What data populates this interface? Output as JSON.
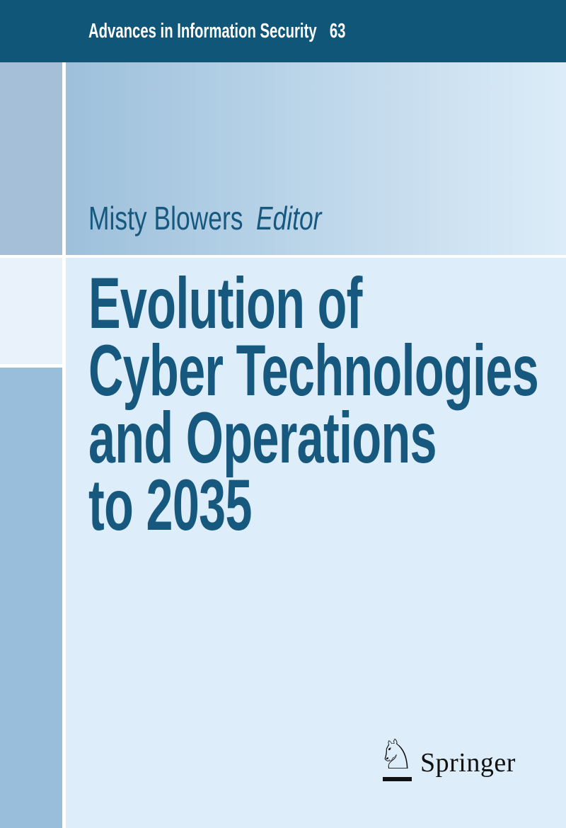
{
  "series": {
    "name": "Advances in Information Security",
    "volume": "63"
  },
  "editor": {
    "name": "Misty Blowers",
    "role": "Editor"
  },
  "title": {
    "lines": [
      "Evolution of",
      "Cyber Technologies",
      "and Operations",
      "to 2035"
    ]
  },
  "publisher": {
    "name": "Springer",
    "knight_icon_glyph": "♘"
  },
  "colors": {
    "header_bg": "#0f5679",
    "header_text": "#ffffff",
    "band_gradient_left": "#9dc0db",
    "band_gradient_right": "#dcecf8",
    "left_rail_top": "#a4bfd7",
    "left_rail_mid": "#e9f2fa",
    "left_rail_bottom": "#98bedb",
    "main_bg": "#ddeefa",
    "title_text": "#17587f",
    "logo_text": "#111111"
  }
}
